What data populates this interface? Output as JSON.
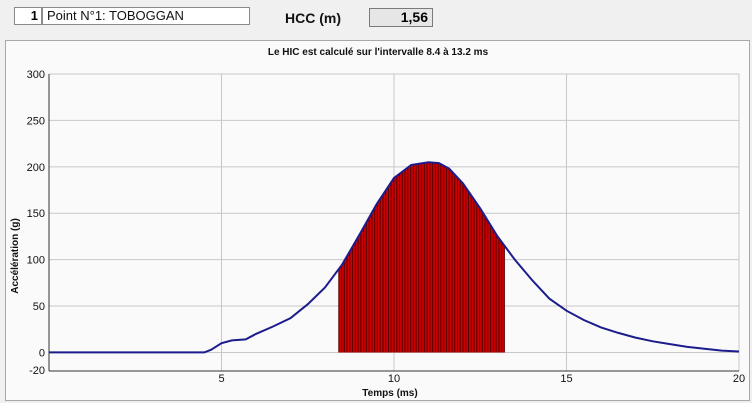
{
  "header": {
    "point_number": "1",
    "point_name": "Point N°1: TOBOGGAN",
    "hcc_label": "HCC (m)",
    "hcc_value": "1,56"
  },
  "chart_data": {
    "type": "line",
    "title": "Le HIC est calculé sur l'intervalle 8.4 à 13.2 ms",
    "xlabel": "Temps (ms)",
    "ylabel": "Accélération (g)",
    "xlim": [
      0,
      20
    ],
    "ylim": [
      -20,
      300
    ],
    "xticks": [
      "5",
      "10",
      "15",
      "20"
    ],
    "yticks": [
      "-20",
      "0",
      "50",
      "100",
      "150",
      "200",
      "250",
      "300"
    ],
    "grid": true,
    "hic_interval": [
      8.4,
      13.2
    ],
    "colors": {
      "line": "#1c1c8c",
      "fill": "#cc0000",
      "hatch": "#5a0000",
      "grid": "#c8c8c8"
    },
    "series": [
      {
        "x": [
          0,
          1,
          2,
          3,
          4,
          4.5,
          4.7,
          5,
          5.3,
          5.7,
          6,
          6.5,
          7,
          7.5,
          8,
          8.5,
          9,
          9.5,
          10,
          10.5,
          11,
          11.3,
          11.6,
          12,
          12.5,
          13,
          13.5,
          14,
          14.5,
          15,
          15.5,
          16,
          16.5,
          17,
          17.5,
          18,
          18.5,
          19,
          19.5,
          20
        ],
        "y": [
          0,
          0,
          0,
          0,
          0,
          0,
          3,
          10,
          13,
          14,
          20,
          28,
          37,
          52,
          70,
          95,
          127,
          160,
          188,
          202,
          205,
          204,
          198,
          182,
          155,
          125,
          100,
          78,
          58,
          45,
          35,
          27,
          21,
          16,
          12,
          9,
          6,
          4,
          2,
          1
        ]
      }
    ]
  }
}
